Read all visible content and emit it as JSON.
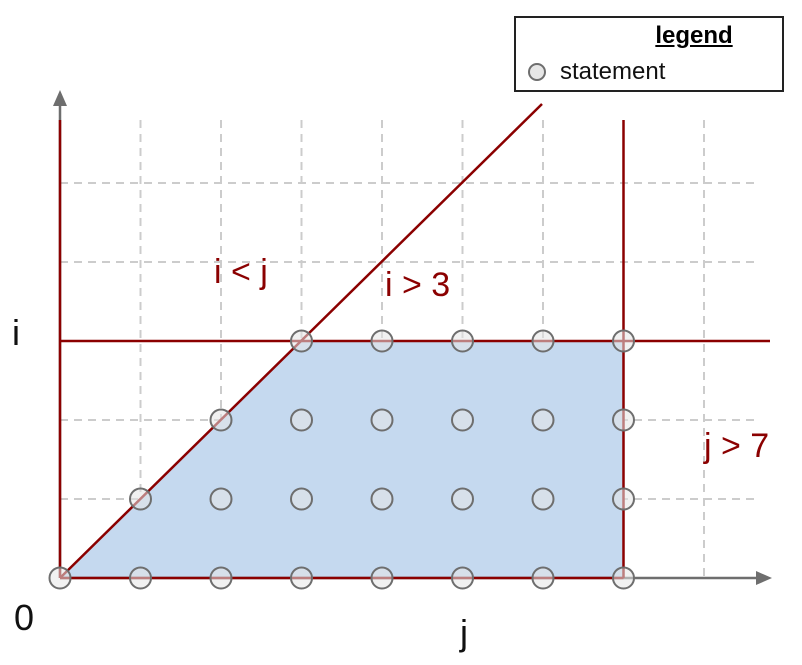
{
  "axes": {
    "x_label": "j",
    "y_label": "i",
    "origin_label": "0"
  },
  "constraints": [
    {
      "id": "i-lt-j",
      "label": "i < j"
    },
    {
      "id": "i-gt-3",
      "label": "i > 3"
    },
    {
      "id": "j-gt-7",
      "label": "j > 7"
    }
  ],
  "legend": {
    "title": "legend",
    "entries": [
      {
        "label": "statement",
        "marker": "circle"
      }
    ]
  },
  "points": [
    [
      0,
      0
    ],
    [
      1,
      0
    ],
    [
      2,
      0
    ],
    [
      3,
      0
    ],
    [
      4,
      0
    ],
    [
      5,
      0
    ],
    [
      6,
      0
    ],
    [
      7,
      0
    ],
    [
      1,
      1
    ],
    [
      2,
      1
    ],
    [
      3,
      1
    ],
    [
      4,
      1
    ],
    [
      5,
      1
    ],
    [
      6,
      1
    ],
    [
      7,
      1
    ],
    [
      2,
      2
    ],
    [
      3,
      2
    ],
    [
      4,
      2
    ],
    [
      5,
      2
    ],
    [
      6,
      2
    ],
    [
      7,
      2
    ],
    [
      3,
      3
    ],
    [
      4,
      3
    ],
    [
      5,
      3
    ],
    [
      6,
      3
    ],
    [
      7,
      3
    ]
  ],
  "colors": {
    "constraint": "#8b0000",
    "region_fill": "#c5d9ef",
    "grid": "#cccccc",
    "axis": "#6e6e6e",
    "point_fill": "#e6e6e6",
    "point_stroke": "#6e6e6e"
  }
}
